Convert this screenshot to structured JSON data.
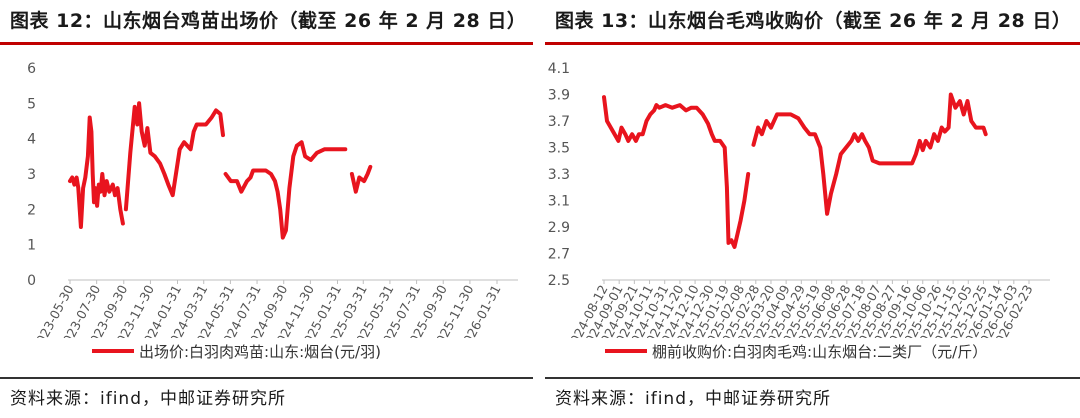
{
  "charts": [
    {
      "title": "图表 12：山东烟台鸡苗出场价（截至 26 年 2 月 28 日）",
      "source": "资料来源：ifind，中邮证券研究所",
      "legend": "出场价:白羽肉鸡苗:山东:烟台(元/羽)",
      "series_color": "#e8141e",
      "y_ticks": [
        "0",
        "1",
        "2",
        "3",
        "4",
        "5",
        "6"
      ],
      "x_ticks": [
        "2023-05-30",
        "2023-07-30",
        "2023-09-30",
        "2023-11-30",
        "2024-01-31",
        "2024-03-31",
        "2024-05-31",
        "2024-07-31",
        "2024-09-30",
        "2024-11-30",
        "2025-01-31",
        "2025-03-31",
        "2025-05-31",
        "2025-07-31",
        "2025-09-30",
        "2025-11-30",
        "2026-01-31"
      ]
    },
    {
      "title": "图表 13：山东烟台毛鸡收购价（截至 26 年 2 月 28 日）",
      "source": "资料来源：ifind，中邮证券研究所",
      "legend": "棚前收购价:白羽肉毛鸡:山东烟台:二类厂（元/斤）",
      "series_color": "#e8141e",
      "y_ticks": [
        "2.5",
        "2.7",
        "2.9",
        "3.1",
        "3.3",
        "3.5",
        "3.7",
        "3.9",
        "4.1"
      ],
      "x_ticks": [
        "2024-08-12",
        "2024-09-01",
        "2024-09-21",
        "2024-10-11",
        "2024-10-31",
        "2024-11-20",
        "2024-12-10",
        "2024-12-30",
        "2025-01-19",
        "2025-02-08",
        "2025-02-28",
        "2025-03-20",
        "2025-04-09",
        "2025-04-29",
        "2025-05-19",
        "2025-06-08",
        "2025-06-28",
        "2025-07-18",
        "2025-08-07",
        "2025-08-27",
        "2025-09-16",
        "2025-10-06",
        "2025-10-26",
        "2025-11-15",
        "2025-12-05",
        "2025-12-25",
        "2026-01-14",
        "2026-02-03",
        "2026-02-23"
      ]
    }
  ],
  "chart_data": [
    {
      "type": "line",
      "title": "图表 12：山东烟台鸡苗出场价（截至 26 年 2 月 28 日）",
      "ylim": [
        0,
        6
      ],
      "xlim": [
        "2023-05-30",
        "2026-02-28"
      ],
      "grid": false,
      "legend_position": "bottom",
      "series": [
        {
          "name": "出场价:白羽肉鸡苗:山东:烟台(元/羽)",
          "segments": [
            [
              [
                "2023-05-30",
                2.8
              ],
              [
                "2023-06-04",
                2.9
              ],
              [
                "2023-06-09",
                2.7
              ],
              [
                "2023-06-14",
                2.9
              ],
              [
                "2023-06-18",
                2.6
              ],
              [
                "2023-06-24",
                1.5
              ],
              [
                "2023-06-29",
                2.6
              ],
              [
                "2023-07-04",
                2.9
              ],
              [
                "2023-07-10",
                3.5
              ],
              [
                "2023-07-14",
                4.6
              ],
              [
                "2023-07-18",
                4.2
              ],
              [
                "2023-07-21",
                3.0
              ],
              [
                "2023-07-24",
                2.2
              ],
              [
                "2023-07-27",
                2.6
              ],
              [
                "2023-07-31",
                2.1
              ],
              [
                "2023-08-04",
                2.7
              ],
              [
                "2023-08-08",
                2.5
              ],
              [
                "2023-08-12",
                3.0
              ],
              [
                "2023-08-17",
                2.4
              ],
              [
                "2023-08-22",
                2.8
              ],
              [
                "2023-08-28",
                2.5
              ],
              [
                "2023-09-05",
                2.7
              ],
              [
                "2023-09-10",
                2.4
              ],
              [
                "2023-09-16",
                2.6
              ],
              [
                "2023-09-22",
                2.0
              ],
              [
                "2023-09-28",
                1.6
              ]
            ],
            [
              [
                "2023-10-05",
                2.0
              ],
              [
                "2023-10-15",
                3.6
              ],
              [
                "2023-10-25",
                4.9
              ],
              [
                "2023-10-31",
                4.4
              ],
              [
                "2023-11-04",
                5.0
              ],
              [
                "2023-11-10",
                4.2
              ],
              [
                "2023-11-17",
                3.8
              ],
              [
                "2023-11-23",
                4.3
              ],
              [
                "2023-11-30",
                3.6
              ],
              [
                "2023-12-10",
                3.5
              ],
              [
                "2023-12-22",
                3.3
              ],
              [
                "2024-01-01",
                3.0
              ],
              [
                "2024-01-10",
                2.7
              ],
              [
                "2024-01-20",
                2.4
              ],
              [
                "2024-02-05",
                3.7
              ],
              [
                "2024-02-15",
                3.9
              ],
              [
                "2024-03-01",
                3.7
              ],
              [
                "2024-03-08",
                4.2
              ],
              [
                "2024-03-15",
                4.4
              ],
              [
                "2024-04-05",
                4.4
              ],
              [
                "2024-04-18",
                4.6
              ],
              [
                "2024-04-28",
                4.8
              ],
              [
                "2024-05-08",
                4.7
              ],
              [
                "2024-05-14",
                4.1
              ]
            ],
            [
              [
                "2024-05-20",
                3.0
              ],
              [
                "2024-06-01",
                2.8
              ],
              [
                "2024-06-15",
                2.8
              ],
              [
                "2024-06-25",
                2.5
              ],
              [
                "2024-07-08",
                2.8
              ],
              [
                "2024-07-16",
                2.9
              ],
              [
                "2024-07-22",
                3.1
              ],
              [
                "2024-08-01",
                3.1
              ],
              [
                "2024-08-20",
                3.1
              ],
              [
                "2024-09-01",
                3.0
              ],
              [
                "2024-09-10",
                2.8
              ],
              [
                "2024-09-16",
                2.5
              ],
              [
                "2024-09-22",
                2.0
              ],
              [
                "2024-09-28",
                1.2
              ],
              [
                "2024-10-05",
                1.4
              ],
              [
                "2024-10-13",
                2.6
              ],
              [
                "2024-10-22",
                3.5
              ],
              [
                "2024-10-30",
                3.8
              ],
              [
                "2024-11-10",
                3.9
              ],
              [
                "2024-11-18",
                3.5
              ],
              [
                "2024-12-01",
                3.4
              ],
              [
                "2024-12-15",
                3.6
              ],
              [
                "2025-01-01",
                3.7
              ],
              [
                "2025-01-15",
                3.7
              ],
              [
                "2025-02-01",
                3.7
              ],
              [
                "2025-02-18",
                3.7
              ]
            ],
            [
              [
                "2025-03-05",
                3.0
              ],
              [
                "2025-03-14",
                2.5
              ],
              [
                "2025-03-22",
                2.9
              ],
              [
                "2025-04-02",
                2.8
              ],
              [
                "2025-04-10",
                3.0
              ],
              [
                "2025-04-16",
                3.2
              ]
            ]
          ]
        }
      ]
    },
    {
      "type": "line",
      "title": "图表 13：山东烟台毛鸡收购价（截至 26 年 2 月 28 日）",
      "ylim": [
        2.5,
        4.1
      ],
      "xlim": [
        "2024-08-12",
        "2026-02-28"
      ],
      "grid": false,
      "legend_position": "bottom",
      "series": [
        {
          "name": "棚前收购价:白羽肉毛鸡:山东烟台:二类厂（元/斤）",
          "segments": [
            [
              [
                "2024-08-12",
                3.88
              ],
              [
                "2024-08-16",
                3.7
              ],
              [
                "2024-08-21",
                3.65
              ],
              [
                "2024-08-26",
                3.6
              ],
              [
                "2024-08-31",
                3.55
              ],
              [
                "2024-09-04",
                3.65
              ],
              [
                "2024-09-09",
                3.6
              ],
              [
                "2024-09-13",
                3.55
              ],
              [
                "2024-09-18",
                3.6
              ],
              [
                "2024-09-23",
                3.55
              ],
              [
                "2024-09-27",
                3.6
              ],
              [
                "2024-10-02",
                3.6
              ],
              [
                "2024-10-07",
                3.7
              ],
              [
                "2024-10-12",
                3.75
              ],
              [
                "2024-10-17",
                3.78
              ],
              [
                "2024-10-20",
                3.82
              ],
              [
                "2024-10-24",
                3.8
              ],
              [
                "2024-11-01",
                3.82
              ],
              [
                "2024-11-10",
                3.8
              ],
              [
                "2024-11-20",
                3.82
              ],
              [
                "2024-11-28",
                3.78
              ],
              [
                "2024-12-05",
                3.8
              ],
              [
                "2024-12-12",
                3.8
              ],
              [
                "2024-12-20",
                3.75
              ],
              [
                "2024-12-27",
                3.68
              ],
              [
                "2025-01-01",
                3.6
              ],
              [
                "2025-01-05",
                3.55
              ],
              [
                "2025-01-12",
                3.55
              ],
              [
                "2025-01-18",
                3.5
              ],
              [
                "2025-01-21",
                3.2
              ],
              [
                "2025-01-23",
                2.78
              ],
              [
                "2025-01-27",
                2.8
              ],
              [
                "2025-01-31",
                2.75
              ],
              [
                "2025-02-04",
                2.85
              ],
              [
                "2025-02-08",
                2.95
              ],
              [
                "2025-02-13",
                3.1
              ],
              [
                "2025-02-18",
                3.3
              ]
            ],
            [
              [
                "2025-02-25",
                3.52
              ],
              [
                "2025-03-03",
                3.65
              ],
              [
                "2025-03-08",
                3.6
              ],
              [
                "2025-03-14",
                3.7
              ],
              [
                "2025-03-20",
                3.65
              ],
              [
                "2025-03-28",
                3.75
              ],
              [
                "2025-04-05",
                3.75
              ],
              [
                "2025-04-15",
                3.75
              ],
              [
                "2025-04-25",
                3.72
              ],
              [
                "2025-05-03",
                3.65
              ],
              [
                "2025-05-10",
                3.6
              ],
              [
                "2025-05-17",
                3.6
              ],
              [
                "2025-05-24",
                3.5
              ],
              [
                "2025-05-28",
                3.3
              ],
              [
                "2025-06-02",
                3.0
              ],
              [
                "2025-06-07",
                3.15
              ],
              [
                "2025-06-14",
                3.3
              ],
              [
                "2025-06-20",
                3.45
              ],
              [
                "2025-06-27",
                3.5
              ],
              [
                "2025-07-04",
                3.55
              ],
              [
                "2025-07-08",
                3.6
              ],
              [
                "2025-07-13",
                3.55
              ],
              [
                "2025-07-18",
                3.6
              ],
              [
                "2025-07-22",
                3.55
              ],
              [
                "2025-07-27",
                3.5
              ],
              [
                "2025-08-01",
                3.4
              ],
              [
                "2025-08-10",
                3.38
              ],
              [
                "2025-08-20",
                3.38
              ],
              [
                "2025-09-01",
                3.38
              ],
              [
                "2025-09-10",
                3.38
              ],
              [
                "2025-09-22",
                3.38
              ],
              [
                "2025-09-27",
                3.45
              ],
              [
                "2025-10-02",
                3.55
              ],
              [
                "2025-10-06",
                3.48
              ],
              [
                "2025-10-10",
                3.55
              ],
              [
                "2025-10-16",
                3.5
              ],
              [
                "2025-10-21",
                3.6
              ],
              [
                "2025-10-26",
                3.55
              ],
              [
                "2025-10-31",
                3.65
              ],
              [
                "2025-11-04",
                3.62
              ],
              [
                "2025-11-09",
                3.65
              ],
              [
                "2025-11-12",
                3.9
              ],
              [
                "2025-11-18",
                3.8
              ],
              [
                "2025-11-24",
                3.85
              ],
              [
                "2025-11-29",
                3.75
              ],
              [
                "2025-12-04",
                3.85
              ],
              [
                "2025-12-09",
                3.7
              ],
              [
                "2025-12-15",
                3.65
              ],
              [
                "2025-12-21",
                3.65
              ],
              [
                "2025-12-25",
                3.65
              ],
              [
                "2025-12-28",
                3.6
              ]
            ]
          ]
        }
      ]
    }
  ]
}
